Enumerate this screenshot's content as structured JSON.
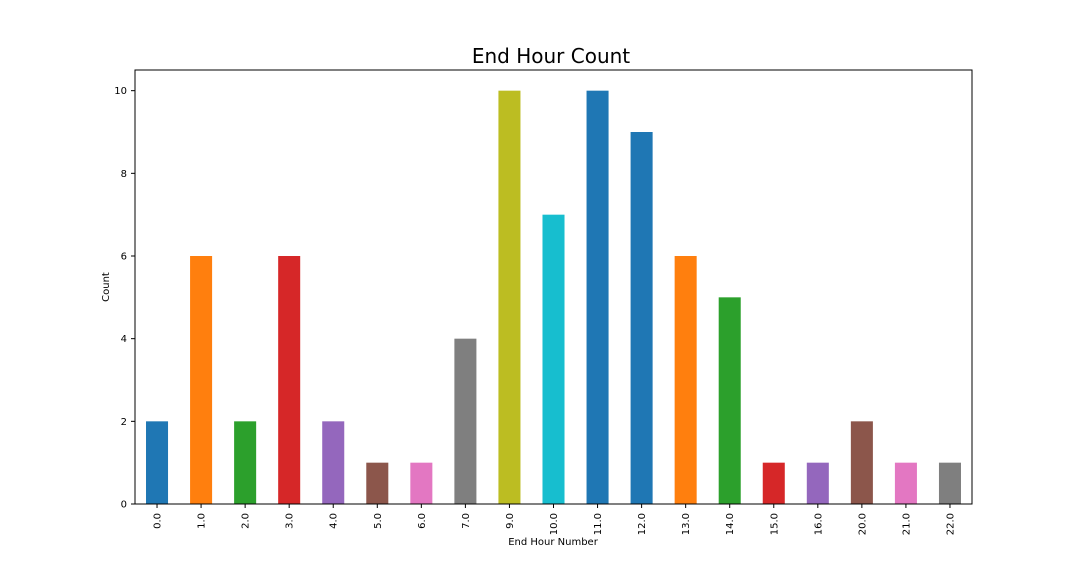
{
  "chart_data": {
    "type": "bar",
    "title": "End Hour Count",
    "xlabel": "End Hour Number",
    "ylabel": "Count",
    "categories": [
      "0.0",
      "1.0",
      "2.0",
      "3.0",
      "4.0",
      "5.0",
      "6.0",
      "7.0",
      "9.0",
      "10.0",
      "11.0",
      "12.0",
      "13.0",
      "14.0",
      "15.0",
      "16.0",
      "20.0",
      "21.0",
      "22.0"
    ],
    "values": [
      2,
      6,
      2,
      6,
      2,
      1,
      1,
      4,
      10,
      7,
      10,
      9,
      6,
      5,
      1,
      1,
      2,
      1,
      1
    ],
    "bar_colors": [
      "#1f77b4",
      "#ff7f0e",
      "#2ca02c",
      "#d62728",
      "#9467bd",
      "#8c564b",
      "#e377c2",
      "#7f7f7f",
      "#bcbd22",
      "#17becf",
      "#1f77b4",
      "#1f77b4",
      "#ff7f0e",
      "#2ca02c",
      "#d62728",
      "#9467bd",
      "#8c564b",
      "#e377c2",
      "#7f7f7f"
    ],
    "ylim": [
      0,
      10.5
    ],
    "yticks": [
      "0",
      "2",
      "4",
      "6",
      "8",
      "10"
    ],
    "grid": false,
    "legend": false
  }
}
